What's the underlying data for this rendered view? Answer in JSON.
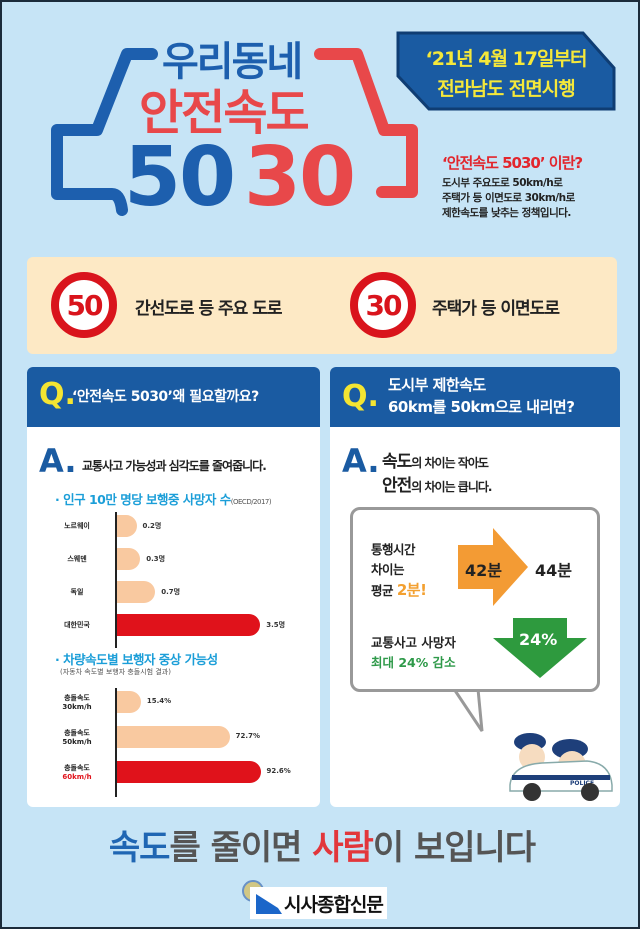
{
  "logo": {
    "line1": "우리동네",
    "line2": "안전속도",
    "num_blue": "50",
    "num_red": "30",
    "colors": {
      "blue": "#1d5fae",
      "red": "#e8484a"
    }
  },
  "date_badge": {
    "line1": "‘21년 4월 17일부터",
    "line2": "전라남도 전면시행"
  },
  "definition": {
    "title": "‘안전속도 5030’ 이란?",
    "lines": [
      "도시부 주요도로 50km/h로",
      "주택가 등 이면도로 30km/h로",
      "제한속도를 낮추는 정책입니다."
    ]
  },
  "speed_band": [
    {
      "limit": "50",
      "label": "간선도로 등 주요 도로"
    },
    {
      "limit": "30",
      "label": "주택가 등 이면도로"
    }
  ],
  "left_panel": {
    "q": "Q.",
    "question": "‘안전속도 5030’왜 필요할까요?",
    "a": "A.",
    "answer": "교통사고 가능성과 심각도를 줄여줍니다.",
    "chart1_title": "· 인구 10만 명당 보행중 사망자 수",
    "chart1_source": "(OECD/2017)",
    "chart2_title": "· 차량속도별 보행자 중상 가능성",
    "chart2_source": "(자동차 속도별 보행자 충돌시험 결과)"
  },
  "chart_data": [
    {
      "type": "bar",
      "orientation": "horizontal",
      "title": "인구 10만 명당 보행중 사망자 수",
      "categories": [
        "노르웨이",
        "스웨덴",
        "독일",
        "대한민국"
      ],
      "values": [
        0.2,
        0.3,
        0.7,
        3.5
      ],
      "value_labels": [
        "0.2명",
        "0.3명",
        "0.7명",
        "3.5명"
      ],
      "colors": [
        "#f9c9a0",
        "#f9c9a0",
        "#f9c9a0",
        "#e0121b"
      ]
    },
    {
      "type": "bar",
      "orientation": "horizontal",
      "title": "차량속도별 보행자 중상 가능성",
      "categories": [
        [
          "충돌속도",
          "30km/h"
        ],
        [
          "충돌속도",
          "50km/h"
        ],
        [
          "충돌속도",
          "60km/h"
        ]
      ],
      "values": [
        15.4,
        72.7,
        92.6
      ],
      "value_labels": [
        "15.4%",
        "72.7%",
        "92.6%"
      ],
      "colors": [
        "#f9c9a0",
        "#f9c9a0",
        "#e0121b"
      ]
    }
  ],
  "right_panel": {
    "q": "Q.",
    "question_line1": "도시부 제한속도",
    "question_line2": "60km를  50km으로 내리면?",
    "a": "A.",
    "ans1_big": "속도",
    "ans1_rest": "의 차이는 작아도",
    "ans2_big": "안전",
    "ans2_rest": "의 차이는 큽니다.",
    "travel_label1": "통행시간",
    "travel_label2": "차이는",
    "travel_label3": "평균 ",
    "travel_diff": "2분!",
    "time_before": "42분",
    "time_after": "44분",
    "fatal_label": "교통사고 사망자",
    "fatal_sub": "최대 24% 감소",
    "fatal_arrow": "24%",
    "car_text": "POLICE"
  },
  "slogan": {
    "p1": "속도",
    "p2": "를 줄이면  ",
    "p3": "사람",
    "p4": "이 보입니다"
  },
  "footer": {
    "agency_logo": "전남경찰청",
    "watermark": "시사종합신문"
  }
}
